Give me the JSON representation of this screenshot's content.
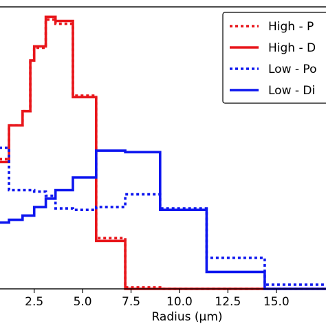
{
  "chart_data": {
    "type": "line",
    "title": "",
    "xlabel": "Radius (μm)",
    "ylabel": "",
    "xlim": [
      0.7,
      17.6
    ],
    "ylim": [
      0,
      1
    ],
    "x_ticks": [
      "2.5",
      "5.0",
      "7.5",
      "10.0",
      "12.5",
      "15.0"
    ],
    "x_tick_values": [
      2.5,
      5.0,
      7.5,
      10.0,
      12.5,
      15.0
    ],
    "legend_position": "top-right",
    "series": [
      {
        "name": "High - P",
        "color": "#e8161b",
        "style": "dotted",
        "x": [
          0.7,
          1.2,
          1.2,
          1.9,
          1.9,
          2.3,
          2.3,
          2.5,
          2.5,
          3.1,
          3.1,
          3.6,
          3.6,
          4.5,
          4.5,
          5.7,
          5.7,
          7.2,
          7.2,
          9.0,
          9.0,
          17.6
        ],
        "y": [
          0.46,
          0.46,
          0.58,
          0.58,
          0.63,
          0.63,
          0.81,
          0.81,
          0.855,
          0.855,
          0.955,
          0.955,
          0.94,
          0.94,
          0.685,
          0.685,
          0.18,
          0.18,
          0.005,
          0.005,
          0.0,
          0.0
        ]
      },
      {
        "name": "High - D",
        "color": "#e8161b",
        "style": "solid",
        "x": [
          0.7,
          1.2,
          1.2,
          1.9,
          1.9,
          2.3,
          2.3,
          2.5,
          2.5,
          3.1,
          3.1,
          3.6,
          3.6,
          4.5,
          4.5,
          5.7,
          5.7,
          7.2,
          7.2,
          17.6
        ],
        "y": [
          0.45,
          0.45,
          0.58,
          0.58,
          0.63,
          0.63,
          0.81,
          0.81,
          0.86,
          0.86,
          0.965,
          0.965,
          0.95,
          0.95,
          0.68,
          0.68,
          0.17,
          0.17,
          0.0,
          0.0
        ]
      },
      {
        "name": "Low - Po",
        "color": "#0d16ef",
        "style": "dotted",
        "x": [
          0.7,
          1.2,
          1.2,
          2.5,
          2.5,
          3.1,
          3.1,
          3.6,
          3.6,
          4.5,
          4.5,
          5.7,
          5.7,
          7.2,
          7.2,
          9.0,
          9.0,
          11.4,
          11.4,
          14.4,
          14.4,
          17.6
        ],
        "y": [
          0.5,
          0.5,
          0.35,
          0.35,
          0.345,
          0.345,
          0.33,
          0.33,
          0.285,
          0.285,
          0.28,
          0.28,
          0.29,
          0.29,
          0.335,
          0.335,
          0.285,
          0.285,
          0.11,
          0.11,
          0.015,
          0.015
        ]
      },
      {
        "name": "Low - Di",
        "color": "#0d16ef",
        "style": "solid",
        "x": [
          0.7,
          1.2,
          1.2,
          1.9,
          1.9,
          2.5,
          2.5,
          3.1,
          3.1,
          3.6,
          3.6,
          4.5,
          4.5,
          5.7,
          5.7,
          7.2,
          7.2,
          9.0,
          9.0,
          11.4,
          11.4,
          14.4,
          14.4,
          17.6
        ],
        "y": [
          0.235,
          0.235,
          0.245,
          0.245,
          0.26,
          0.26,
          0.29,
          0.29,
          0.32,
          0.32,
          0.35,
          0.35,
          0.395,
          0.395,
          0.49,
          0.49,
          0.485,
          0.485,
          0.28,
          0.28,
          0.06,
          0.06,
          0.0,
          0.0
        ]
      }
    ]
  }
}
